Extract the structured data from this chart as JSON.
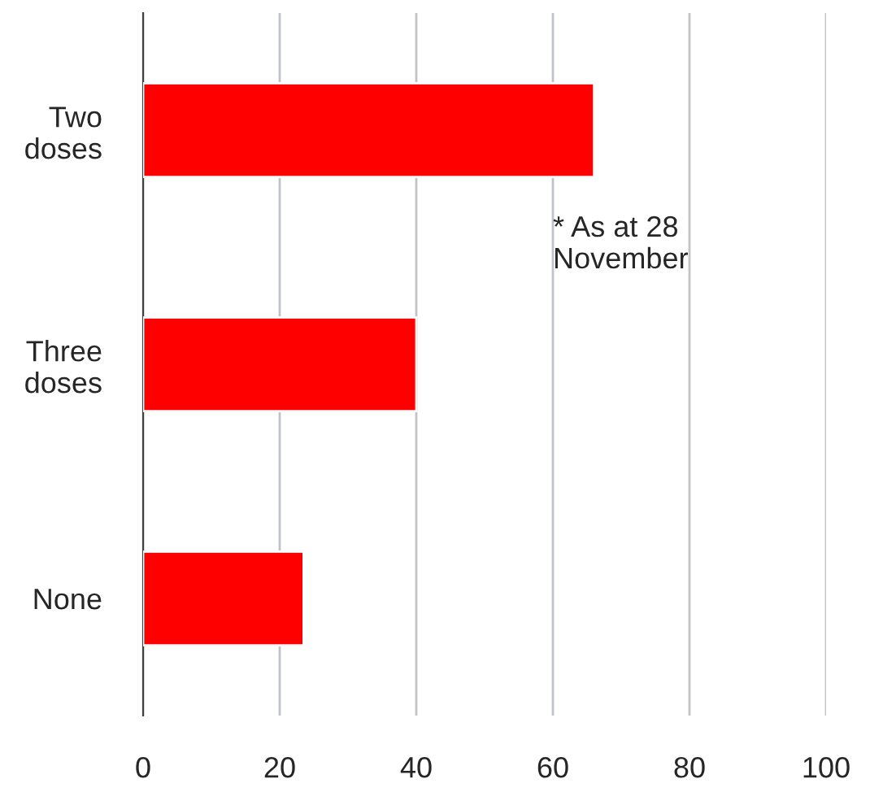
{
  "chart_data": {
    "type": "bar",
    "orientation": "horizontal",
    "categories": [
      "Two\ndoses",
      "Three\ndoses",
      "None"
    ],
    "values": [
      66,
      40,
      23.5
    ],
    "color": "#ff0000",
    "xlim": [
      0,
      100
    ],
    "xticks": [
      0,
      20,
      40,
      60,
      80,
      100
    ],
    "grid": "x",
    "annotations": [
      "* As at 28\nNovember"
    ]
  }
}
